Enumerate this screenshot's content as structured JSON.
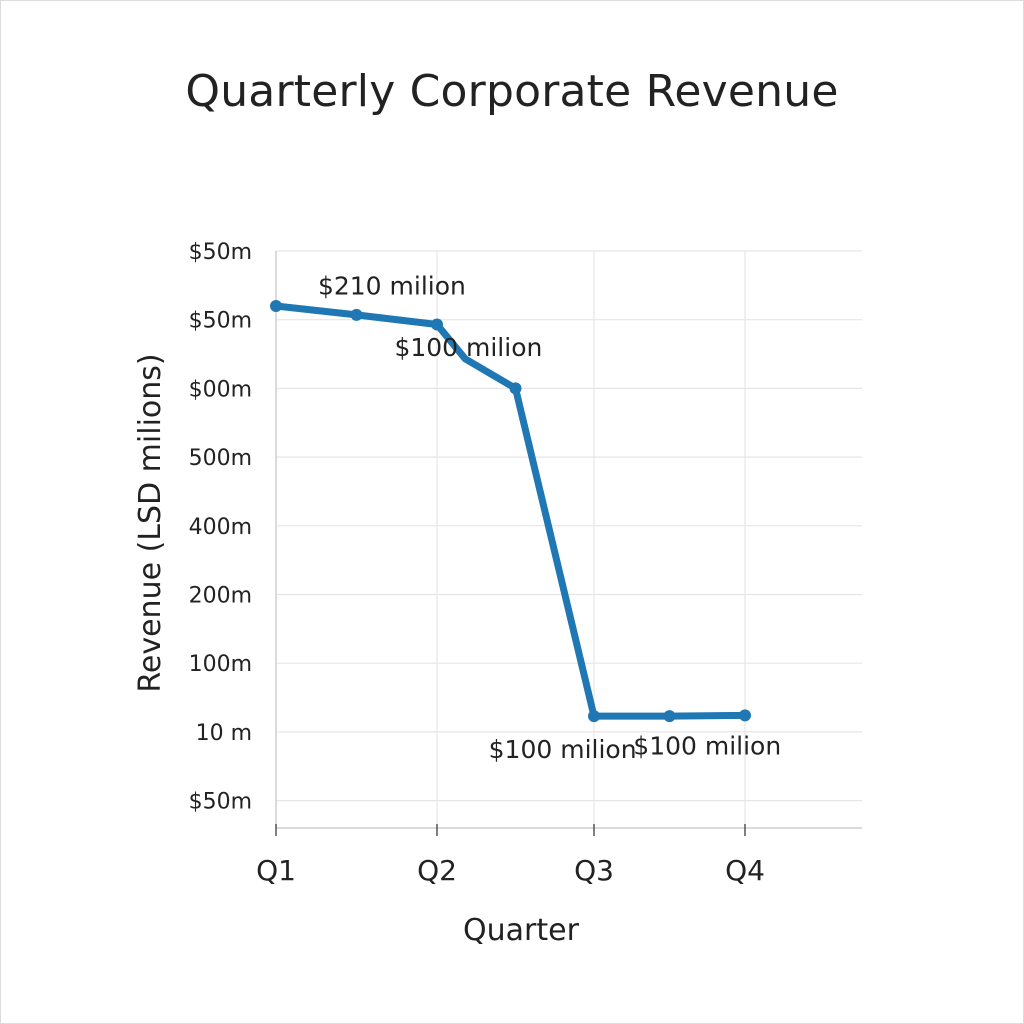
{
  "chart_data": {
    "type": "line",
    "title": "Quarterly Corporate Revenue",
    "xlabel": "Quarter",
    "ylabel": "Revenue (LSD milions)",
    "x_ticks": [
      "Q1",
      "Q2",
      "Q3",
      "Q4"
    ],
    "y_ticks": [
      "$50m",
      "$50m",
      "$00m",
      "500m",
      "400m",
      "200m",
      "100m",
      "10  m",
      "$50m"
    ],
    "grid": true,
    "line_color": "#1f77b4",
    "series": [
      {
        "x": [
          1.0,
          1.5,
          2.0,
          2.18,
          2.5,
          3.0,
          3.5,
          4.0
        ],
        "y": [
          7.2,
          7.07,
          6.93,
          6.43,
          6.0,
          1.23,
          1.23,
          1.24
        ],
        "markers": [
          true,
          true,
          true,
          false,
          true,
          true,
          true,
          true
        ]
      }
    ],
    "annotations": [
      {
        "text": "$210 milion",
        "x": 1.72,
        "y": 7.5
      },
      {
        "text": "$100 milion",
        "x": 2.2,
        "y": 6.6
      },
      {
        "text": "$100 milion",
        "x": 2.8,
        "y": 0.75
      },
      {
        "text": "$100 milion",
        "x": 3.75,
        "y": 0.8
      }
    ]
  }
}
